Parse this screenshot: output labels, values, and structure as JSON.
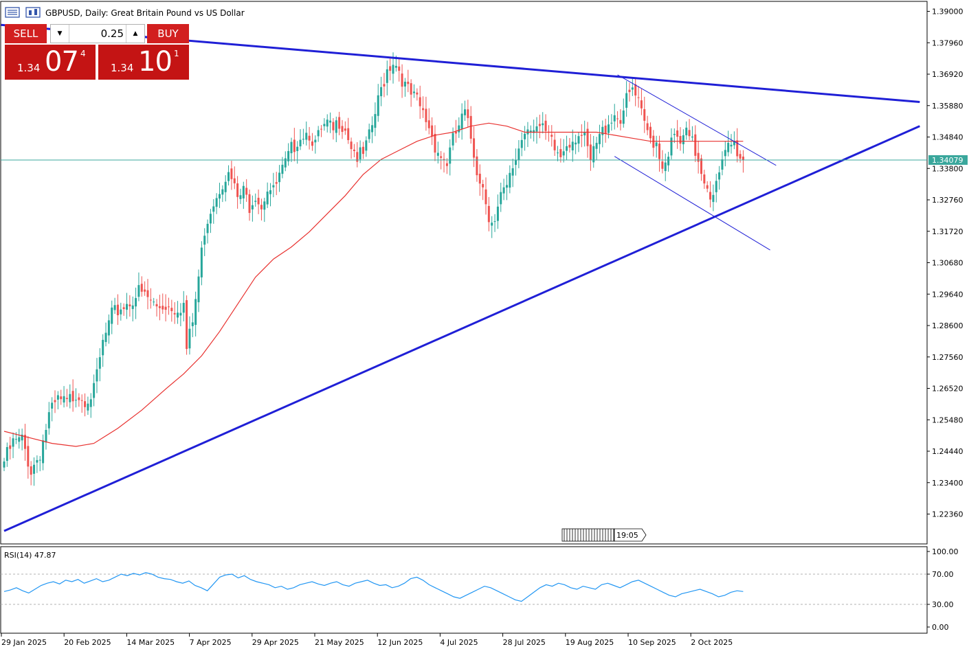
{
  "window": {
    "title": "GBPUSD, Daily:  Great Britain Pound vs US Dollar"
  },
  "trade_panel": {
    "sell_label": "SELL",
    "buy_label": "BUY",
    "lot_value": "0.25",
    "sell_price": {
      "small": "1.34",
      "big": "07",
      "sup": "4"
    },
    "buy_price": {
      "small": "1.34",
      "big": "10",
      "sup": "1"
    }
  },
  "current_price_label": "1.34079",
  "rsi": {
    "title": "RSI(14) 47.87",
    "levels": [
      "100.00",
      "70.00",
      "30.00",
      "0.00"
    ]
  },
  "chart_data": {
    "type": "candlestick",
    "symbol": "GBPUSD",
    "timeframe": "Daily",
    "ylim": [
      1.214,
      1.392
    ],
    "y_ticks": [
      "1.39000",
      "1.37960",
      "1.36920",
      "1.35880",
      "1.34840",
      "1.33800",
      "1.32760",
      "1.31720",
      "1.30680",
      "1.29640",
      "1.28600",
      "1.27560",
      "1.26520",
      "1.25480",
      "1.24440",
      "1.23400",
      "1.22360"
    ],
    "x_ticks": [
      "29 Jan 2025",
      "20 Feb 2025",
      "14 Mar 2025",
      "7 Apr 2025",
      "29 Apr 2025",
      "21 May 2025",
      "12 Jun 2025",
      "4 Jul 2025",
      "28 Jul 2025",
      "19 Aug 2025",
      "10 Sep 2025",
      "2 Oct 2025"
    ],
    "current_price": 1.34079,
    "ma_color": "#e8302e",
    "bull_color": "#26a69a",
    "bear_color": "#ef5350",
    "trendline_color": "#1f1fd6",
    "rsi_color": "#2196f3",
    "price_line_color": "#3aa79c",
    "close_path": [
      [
        0,
        1.241
      ],
      [
        3,
        1.247
      ],
      [
        6,
        1.248
      ],
      [
        9,
        1.238
      ],
      [
        12,
        1.244
      ],
      [
        15,
        1.256
      ],
      [
        18,
        1.261
      ],
      [
        21,
        1.26
      ],
      [
        24,
        1.264
      ],
      [
        27,
        1.262
      ],
      [
        30,
        1.264
      ],
      [
        33,
        1.28
      ],
      [
        36,
        1.289
      ],
      [
        39,
        1.292
      ],
      [
        42,
        1.294
      ],
      [
        45,
        1.297
      ],
      [
        48,
        1.295
      ],
      [
        51,
        1.292
      ],
      [
        54,
        1.293
      ],
      [
        57,
        1.292
      ],
      [
        60,
        1.293
      ],
      [
        61,
        1.278
      ],
      [
        63,
        1.287
      ],
      [
        65,
        1.302
      ],
      [
        67,
        1.318
      ],
      [
        69,
        1.325
      ],
      [
        72,
        1.332
      ],
      [
        74,
        1.336
      ],
      [
        76,
        1.334
      ],
      [
        78,
        1.328
      ],
      [
        80,
        1.33
      ],
      [
        82,
        1.326
      ],
      [
        84,
        1.33
      ],
      [
        86,
        1.326
      ],
      [
        88,
        1.332
      ],
      [
        90,
        1.33
      ],
      [
        92,
        1.335
      ],
      [
        94,
        1.339
      ],
      [
        96,
        1.344
      ],
      [
        98,
        1.348
      ],
      [
        100,
        1.35
      ],
      [
        102,
        1.35
      ],
      [
        104,
        1.346
      ],
      [
        106,
        1.35
      ],
      [
        108,
        1.352
      ],
      [
        110,
        1.35
      ],
      [
        112,
        1.354
      ],
      [
        114,
        1.352
      ],
      [
        116,
        1.346
      ],
      [
        118,
        1.342
      ],
      [
        120,
        1.342
      ],
      [
        122,
        1.348
      ],
      [
        124,
        1.356
      ],
      [
        126,
        1.364
      ],
      [
        128,
        1.371
      ],
      [
        130,
        1.374
      ],
      [
        132,
        1.371
      ],
      [
        134,
        1.365
      ],
      [
        136,
        1.362
      ],
      [
        138,
        1.36
      ],
      [
        140,
        1.356
      ],
      [
        142,
        1.352
      ],
      [
        144,
        1.346
      ],
      [
        146,
        1.342
      ],
      [
        148,
        1.34
      ],
      [
        150,
        1.347
      ],
      [
        152,
        1.352
      ],
      [
        154,
        1.356
      ],
      [
        156,
        1.348
      ],
      [
        158,
        1.338
      ],
      [
        160,
        1.332
      ],
      [
        162,
        1.323
      ],
      [
        164,
        1.32
      ],
      [
        166,
        1.328
      ],
      [
        168,
        1.331
      ],
      [
        170,
        1.338
      ],
      [
        172,
        1.345
      ],
      [
        174,
        1.351
      ],
      [
        176,
        1.353
      ],
      [
        178,
        1.352
      ],
      [
        180,
        1.35
      ],
      [
        182,
        1.348
      ],
      [
        184,
        1.344
      ],
      [
        186,
        1.342
      ],
      [
        188,
        1.347
      ],
      [
        190,
        1.348
      ],
      [
        192,
        1.35
      ],
      [
        194,
        1.347
      ],
      [
        196,
        1.34
      ],
      [
        198,
        1.346
      ],
      [
        200,
        1.35
      ],
      [
        202,
        1.354
      ],
      [
        204,
        1.356
      ],
      [
        206,
        1.355
      ],
      [
        208,
        1.36
      ],
      [
        210,
        1.364
      ],
      [
        212,
        1.359
      ],
      [
        214,
        1.352
      ],
      [
        216,
        1.348
      ],
      [
        218,
        1.347
      ],
      [
        220,
        1.339
      ],
      [
        222,
        1.344
      ],
      [
        224,
        1.348
      ],
      [
        226,
        1.346
      ],
      [
        228,
        1.349
      ],
      [
        230,
        1.346
      ],
      [
        232,
        1.341
      ],
      [
        234,
        1.335
      ],
      [
        236,
        1.33
      ],
      [
        238,
        1.332
      ],
      [
        240,
        1.339
      ],
      [
        242,
        1.345
      ],
      [
        244,
        1.346
      ],
      [
        246,
        1.342
      ],
      [
        247,
        1.3408
      ]
    ],
    "moving_average": [
      [
        0,
        1.251
      ],
      [
        8,
        1.249
      ],
      [
        16,
        1.247
      ],
      [
        24,
        1.246
      ],
      [
        30,
        1.247
      ],
      [
        38,
        1.252
      ],
      [
        46,
        1.258
      ],
      [
        54,
        1.265
      ],
      [
        60,
        1.27
      ],
      [
        66,
        1.276
      ],
      [
        72,
        1.284
      ],
      [
        78,
        1.293
      ],
      [
        84,
        1.302
      ],
      [
        90,
        1.308
      ],
      [
        96,
        1.312
      ],
      [
        102,
        1.317
      ],
      [
        108,
        1.323
      ],
      [
        114,
        1.329
      ],
      [
        120,
        1.336
      ],
      [
        126,
        1.341
      ],
      [
        132,
        1.344
      ],
      [
        138,
        1.347
      ],
      [
        144,
        1.349
      ],
      [
        150,
        1.35
      ],
      [
        156,
        1.352
      ],
      [
        162,
        1.353
      ],
      [
        168,
        1.352
      ],
      [
        174,
        1.35
      ],
      [
        180,
        1.35
      ],
      [
        186,
        1.35
      ],
      [
        192,
        1.35
      ],
      [
        198,
        1.35
      ],
      [
        204,
        1.349
      ],
      [
        210,
        1.348
      ],
      [
        216,
        1.347
      ],
      [
        222,
        1.347
      ],
      [
        228,
        1.347
      ],
      [
        234,
        1.347
      ],
      [
        240,
        1.347
      ],
      [
        247,
        1.347
      ]
    ],
    "trendlines": [
      {
        "name": "upper-resistance",
        "from": [
          -1,
          1.3855
        ],
        "to": [
          306,
          1.36
        ],
        "width": 3
      },
      {
        "name": "lower-support",
        "from": [
          0,
          1.218
        ],
        "to": [
          306,
          1.352
        ],
        "width": 3
      },
      {
        "name": "channel-upper",
        "from": [
          205,
          1.369
        ],
        "to": [
          258,
          1.339
        ],
        "width": 1
      },
      {
        "name": "channel-lower",
        "from": [
          204,
          1.342
        ],
        "to": [
          256,
          1.311
        ],
        "width": 1
      }
    ],
    "rsi_values": [
      47,
      49,
      52,
      48,
      45,
      50,
      55,
      58,
      60,
      57,
      62,
      60,
      63,
      58,
      61,
      64,
      60,
      62,
      66,
      70,
      68,
      71,
      69,
      72,
      70,
      66,
      64,
      63,
      60,
      58,
      61,
      55,
      52,
      48,
      57,
      66,
      69,
      70,
      65,
      68,
      63,
      60,
      58,
      56,
      52,
      54,
      50,
      52,
      56,
      58,
      60,
      57,
      55,
      58,
      60,
      56,
      54,
      58,
      60,
      62,
      58,
      55,
      56,
      52,
      54,
      58,
      64,
      66,
      62,
      56,
      52,
      48,
      44,
      40,
      38,
      42,
      46,
      50,
      54,
      52,
      48,
      44,
      40,
      36,
      34,
      40,
      46,
      52,
      56,
      54,
      58,
      56,
      52,
      50,
      54,
      52,
      50,
      56,
      58,
      55,
      52,
      56,
      60,
      62,
      58,
      54,
      50,
      46,
      42,
      40,
      44,
      46,
      48,
      50,
      47,
      44,
      40,
      42,
      46,
      48,
      47
    ]
  }
}
